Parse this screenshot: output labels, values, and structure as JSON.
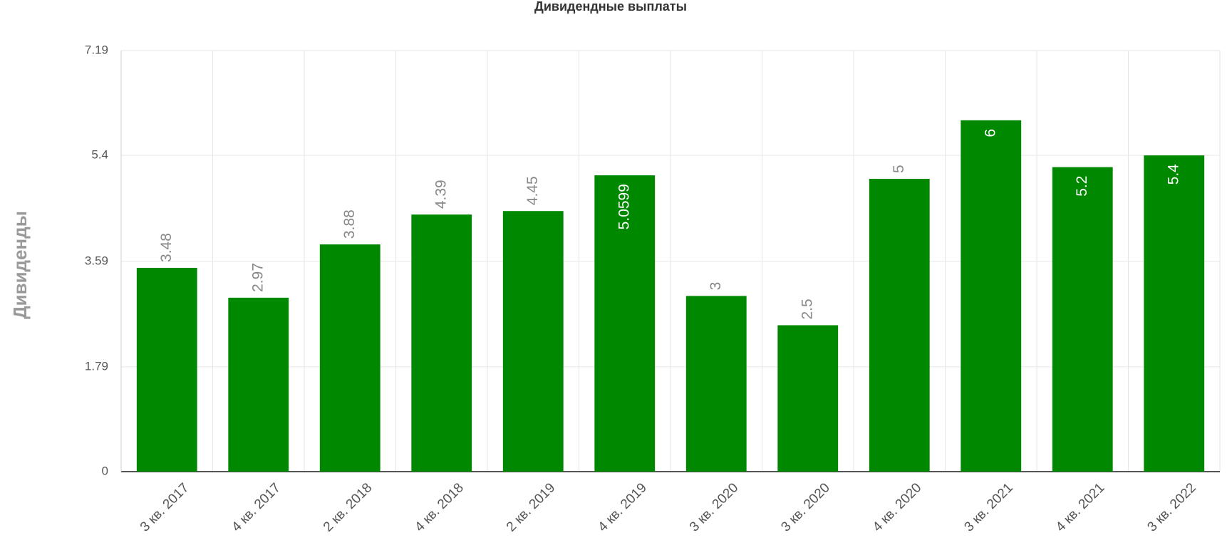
{
  "chart_data": {
    "type": "bar",
    "title": "Дивидендные выплаты",
    "y_label": "Дивиденды",
    "categories": [
      "3 кв. 2017",
      "4 кв. 2017",
      "2 кв. 2018",
      "4 кв. 2018",
      "2 кв. 2019",
      "4 кв. 2019",
      "3 кв. 2020",
      "3 кв. 2020",
      "4 кв. 2020",
      "3 кв. 2021",
      "4 кв. 2021",
      "3 кв. 2022"
    ],
    "values": [
      3.48,
      2.97,
      3.88,
      4.39,
      4.45,
      5.0599,
      3,
      2.5,
      5,
      6,
      5.2,
      5.4
    ],
    "color": "#008800",
    "ylim": [
      0,
      7.19
    ],
    "yticks": [
      0,
      1.79,
      3.59,
      5.4,
      7.19
    ],
    "grid": true
  }
}
